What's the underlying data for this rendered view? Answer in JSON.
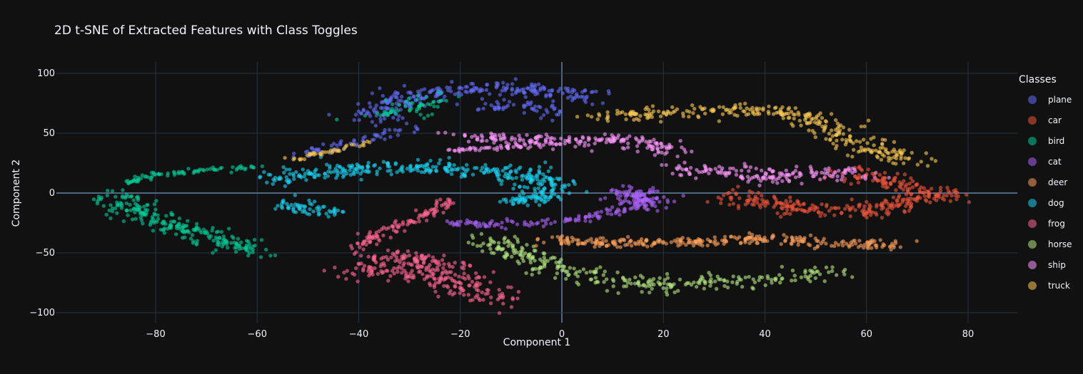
{
  "chart_data": {
    "type": "scatter",
    "title": "2D t-SNE of Extracted Features with Class Toggles",
    "xlabel": "Component 1",
    "ylabel": "Component 2",
    "xlim": [
      -100,
      90
    ],
    "ylim": [
      -100,
      100
    ],
    "xticks": [
      -80,
      -60,
      -40,
      -20,
      0,
      20,
      40,
      60,
      80
    ],
    "yticks": [
      -100,
      -50,
      0,
      50,
      100
    ],
    "grid": true,
    "legend_title": "Classes",
    "legend_position": "right",
    "series": [
      {
        "name": "plane",
        "color": "#636efa",
        "clusters": [
          {
            "path": [
              [
                -38,
                62
              ],
              [
                -32,
                78
              ],
              [
                -20,
                86
              ],
              [
                -8,
                88
              ],
              [
                -2,
                85
              ],
              [
                5,
                80
              ]
            ],
            "spread": 3,
            "n": 260
          },
          {
            "path": [
              [
                -52,
                30
              ],
              [
                -44,
                40
              ],
              [
                -36,
                48
              ],
              [
                -30,
                54
              ]
            ],
            "spread": 1.5,
            "n": 60
          },
          {
            "path": [
              [
                -18,
                70
              ],
              [
                -8,
                74
              ],
              [
                -3,
                70
              ],
              [
                -2,
                64
              ]
            ],
            "spread": 2,
            "n": 50
          }
        ]
      },
      {
        "name": "car",
        "color": "#ef553b",
        "clusters": [
          {
            "path": [
              [
                33,
                0
              ],
              [
                45,
                -12
              ],
              [
                58,
                -16
              ],
              [
                66,
                -8
              ],
              [
                72,
                0
              ],
              [
                78,
                -5
              ]
            ],
            "spread": 3,
            "n": 260
          },
          {
            "path": [
              [
                56,
                18
              ],
              [
                64,
                10
              ],
              [
                70,
                4
              ]
            ],
            "spread": 2.5,
            "n": 80
          }
        ]
      },
      {
        "name": "bird",
        "color": "#00cc96",
        "clusters": [
          {
            "path": [
              [
                -88,
                0
              ],
              [
                -84,
                -14
              ],
              [
                -76,
                -28
              ],
              [
                -68,
                -38
              ],
              [
                -60,
                -49
              ]
            ],
            "spread": 3,
            "n": 240
          },
          {
            "path": [
              [
                -86,
                8
              ],
              [
                -80,
                15
              ],
              [
                -70,
                20
              ],
              [
                -60,
                21
              ]
            ],
            "spread": 1,
            "n": 80
          },
          {
            "path": [
              [
                -37,
                64
              ],
              [
                -30,
                72
              ],
              [
                -25,
                78
              ]
            ],
            "spread": 3,
            "n": 60
          }
        ]
      },
      {
        "name": "cat",
        "color": "#ab63fa",
        "clusters": [
          {
            "path": [
              [
                -23,
                -26
              ],
              [
                -5,
                -25
              ],
              [
                5,
                -20
              ],
              [
                12,
                -14
              ],
              [
                17,
                -6
              ],
              [
                16,
                2
              ]
            ],
            "spread": 1.5,
            "n": 140
          },
          {
            "path": [
              [
                12,
                4
              ],
              [
                15,
                -4
              ],
              [
                17,
                -12
              ]
            ],
            "spread": 2.5,
            "n": 80
          }
        ]
      },
      {
        "name": "deer",
        "color": "#ffa15a",
        "clusters": [
          {
            "path": [
              [
                -3,
                -40
              ],
              [
                18,
                -42
              ],
              [
                40,
                -38
              ],
              [
                55,
                -42
              ],
              [
                67,
                -43
              ]
            ],
            "spread": 2,
            "n": 280
          }
        ]
      },
      {
        "name": "dog",
        "color": "#19d3f3",
        "clusters": [
          {
            "path": [
              [
                -58,
                10
              ],
              [
                -45,
                20
              ],
              [
                -25,
                22
              ],
              [
                -10,
                18
              ],
              [
                -2,
                8
              ],
              [
                -4,
                -2
              ]
            ],
            "spread": 3,
            "n": 340
          },
          {
            "path": [
              [
                -55,
                -5
              ],
              [
                -50,
                -15
              ],
              [
                -45,
                -18
              ]
            ],
            "spread": 2,
            "n": 60
          },
          {
            "path": [
              [
                -12,
                -10
              ],
              [
                -6,
                -5
              ],
              [
                -2,
                -3
              ]
            ],
            "spread": 2,
            "n": 50
          }
        ]
      },
      {
        "name": "frog",
        "color": "#ff6692",
        "clusters": [
          {
            "path": [
              [
                -41,
                -48
              ],
              [
                -36,
                -35
              ],
              [
                -28,
                -20
              ],
              [
                -22,
                -6
              ]
            ],
            "spread": 1.5,
            "n": 110
          },
          {
            "path": [
              [
                -40,
                -65
              ],
              [
                -32,
                -62
              ],
              [
                -24,
                -70
              ],
              [
                -16,
                -84
              ],
              [
                -13,
                -90
              ]
            ],
            "spread": 4,
            "n": 200
          },
          {
            "path": [
              [
                -38,
                -52
              ],
              [
                -30,
                -55
              ],
              [
                -22,
                -60
              ]
            ],
            "spread": 3,
            "n": 80
          }
        ]
      },
      {
        "name": "horse",
        "color": "#b6e880",
        "clusters": [
          {
            "path": [
              [
                -16,
                -38
              ],
              [
                -5,
                -55
              ],
              [
                5,
                -70
              ],
              [
                18,
                -77
              ],
              [
                28,
                -75
              ],
              [
                40,
                -72
              ],
              [
                55,
                -65
              ]
            ],
            "spread": 3,
            "n": 300
          }
        ]
      },
      {
        "name": "ship",
        "color": "#ff97ff",
        "clusters": [
          {
            "path": [
              [
                -20,
                48
              ],
              [
                -8,
                44
              ],
              [
                0,
                43
              ],
              [
                10,
                46
              ],
              [
                18,
                40
              ],
              [
                22,
                34
              ]
            ],
            "spread": 2.5,
            "n": 200
          },
          {
            "path": [
              [
                22,
                20
              ],
              [
                32,
                18
              ],
              [
                42,
                13
              ],
              [
                52,
                18
              ],
              [
                60,
                13
              ]
            ],
            "spread": 3,
            "n": 160
          },
          {
            "path": [
              [
                -22,
                36
              ],
              [
                -14,
                38
              ],
              [
                -8,
                39
              ]
            ],
            "spread": 1,
            "n": 40
          }
        ]
      },
      {
        "name": "truck",
        "color": "#fecb52",
        "clusters": [
          {
            "path": [
              [
                8,
                63
              ],
              [
                22,
                68
              ],
              [
                35,
                70
              ],
              [
                45,
                68
              ],
              [
                52,
                55
              ],
              [
                60,
                40
              ],
              [
                65,
                30
              ],
              [
                72,
                28
              ]
            ],
            "spread": 3,
            "n": 300
          },
          {
            "path": [
              [
                -53,
                28
              ],
              [
                -45,
                36
              ],
              [
                -38,
                42
              ]
            ],
            "spread": 1,
            "n": 40
          }
        ]
      }
    ]
  },
  "legend": {
    "title": "Classes",
    "items": [
      "plane",
      "car",
      "bird",
      "cat",
      "deer",
      "dog",
      "frog",
      "horse",
      "ship",
      "truck"
    ]
  }
}
